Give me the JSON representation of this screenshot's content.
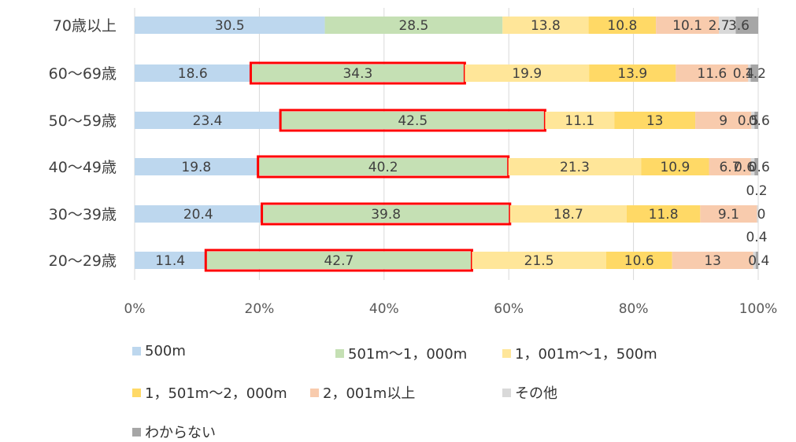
{
  "chart_data": {
    "type": "bar",
    "orientation": "horizontal",
    "stacked": "percent",
    "categories": [
      "70歳以上",
      "60〜69歳",
      "50〜59歳",
      "40〜49歳",
      "30〜39歳",
      "20〜29歳"
    ],
    "series": [
      {
        "name": "500m",
        "color": "#bdd7ee",
        "values": [
          30.5,
          18.6,
          23.4,
          19.8,
          20.4,
          11.4
        ]
      },
      {
        "name": "501m〜1，000m",
        "color": "#c5e0b4",
        "values": [
          28.5,
          34.3,
          42.5,
          40.2,
          39.8,
          42.7
        ]
      },
      {
        "name": "1，001m〜1，500m",
        "color": "#ffe699",
        "values": [
          13.8,
          19.9,
          11.1,
          21.3,
          18.7,
          21.5
        ]
      },
      {
        "name": "1，501m〜2，000m",
        "color": "#ffd966",
        "values": [
          10.8,
          13.9,
          13,
          10.9,
          11.8,
          10.6
        ]
      },
      {
        "name": "2，001m以上",
        "color": "#f8cbad",
        "values": [
          10.1,
          11.6,
          9,
          6.7,
          9.1,
          13
        ]
      },
      {
        "name": "その他",
        "color": "#d9d9d9",
        "values": [
          2.7,
          0.4,
          0.5,
          0.6,
          0.2,
          0.4
        ]
      },
      {
        "name": "わからない",
        "color": "#a6a6a6",
        "values": [
          3.6,
          1.2,
          0.6,
          0.6,
          0,
          0.4
        ]
      }
    ],
    "data_labels": [
      [
        "30.5",
        "28.5",
        "13.8",
        "10.8",
        "10.1",
        "2.7",
        "3.6"
      ],
      [
        "18.6",
        "34.3",
        "19.9",
        "13.9",
        "11.6",
        "0.4",
        "1.2"
      ],
      [
        "23.4",
        "42.5",
        "11.1",
        "13",
        "9",
        "0.5",
        "0.6"
      ],
      [
        "19.8",
        "40.2",
        "21.3",
        "10.9",
        "6.7",
        "0.6",
        "0.6"
      ],
      [
        "20.4",
        "39.8",
        "18.7",
        "11.8",
        "9.1",
        "0.2",
        "0"
      ],
      [
        "11.4",
        "42.7",
        "21.5",
        "10.6",
        "13",
        "0.4",
        "0.4"
      ]
    ],
    "highlighted_series": "501m〜1，000m",
    "highlighted_categories": [
      "60〜69歳",
      "50〜59歳",
      "40〜49歳",
      "30〜39歳",
      "20〜29歳"
    ],
    "highlight_color": "#ff0000",
    "xticks": [
      "0%",
      "20%",
      "40%",
      "60%",
      "80%",
      "100%"
    ],
    "xlim": [
      0,
      100
    ],
    "grid": "vertical",
    "legend_position": "bottom",
    "title": "",
    "xlabel": "",
    "ylabel": ""
  }
}
